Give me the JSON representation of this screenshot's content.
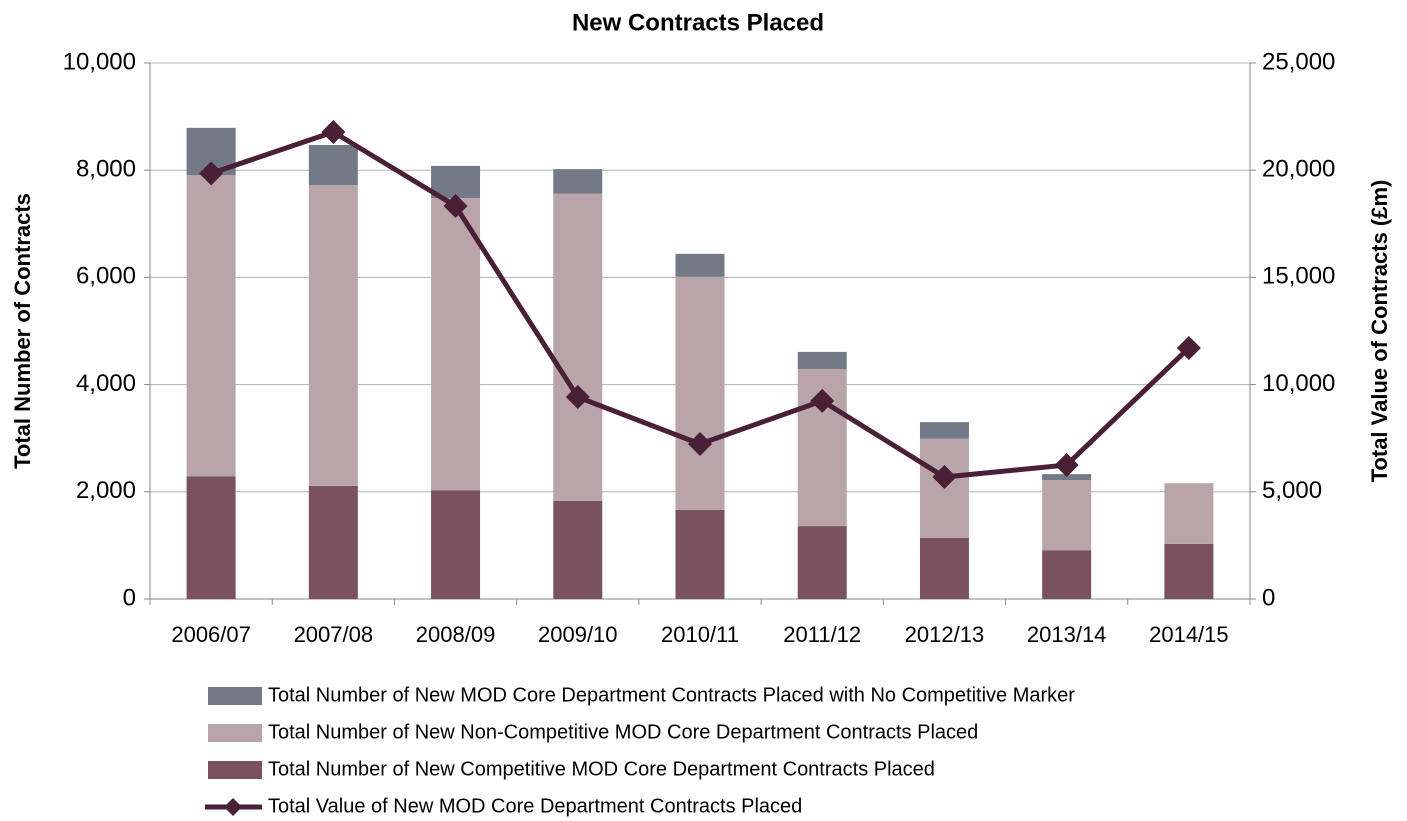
{
  "chart_data": {
    "type": "bar-line",
    "title": "New Contracts Placed",
    "y_label": "Total Number of Contracts",
    "y2_label": "Total Value of Contracts (£m)",
    "categories": [
      "2006/07",
      "2007/08",
      "2008/09",
      "2009/10",
      "2010/11",
      "2011/12",
      "2012/13",
      "2013/14",
      "2014/15"
    ],
    "series": [
      {
        "name": "Total Number of New MOD Core Department Contracts Placed with No Competitive Marker",
        "type": "bar",
        "color": "#737a87",
        "values": [
          880,
          750,
          600,
          460,
          430,
          320,
          310,
          110,
          0
        ]
      },
      {
        "name": "Total Number of New Non-Competitive MOD Core Department Contracts Placed",
        "type": "bar",
        "color": "#b9a5a9",
        "values": [
          5620,
          5610,
          5450,
          5730,
          4350,
          2930,
          1850,
          1310,
          1130
        ]
      },
      {
        "name": "Total Number of New Competitive MOD Core Department Contracts Placed",
        "type": "bar",
        "color": "#7a525f",
        "values": [
          2290,
          2110,
          2030,
          1830,
          1660,
          1360,
          1140,
          910,
          1030
        ]
      },
      {
        "name": "Total Value of New MOD Core Department Contracts Placed",
        "type": "line",
        "axis": "y2",
        "color": "#4a2036",
        "values": [
          19850,
          21780,
          18330,
          9420,
          7230,
          9240,
          5690,
          6250,
          11710
        ]
      }
    ],
    "stacking_order": [
      2,
      1,
      0
    ],
    "ylim": [
      0,
      10000
    ],
    "yticks": [
      0,
      {
        "value": 2000,
        "label": "2,000"
      },
      {
        "value": 4000,
        "label": "4,000"
      },
      {
        "value": 6000,
        "label": "6,000"
      },
      {
        "value": 8000,
        "label": "8,000"
      },
      {
        "value": 10000,
        "label": "10,000"
      }
    ],
    "y2lim": [
      0,
      25000
    ],
    "y2ticks": [
      0,
      {
        "value": 5000,
        "label": "5,000"
      },
      {
        "value": 10000,
        "label": "10,000"
      },
      {
        "value": 15000,
        "label": "15,000"
      },
      {
        "value": 20000,
        "label": "20,000"
      },
      {
        "value": 25000,
        "label": "25,000"
      }
    ],
    "grid": true,
    "legend": "bottom"
  }
}
